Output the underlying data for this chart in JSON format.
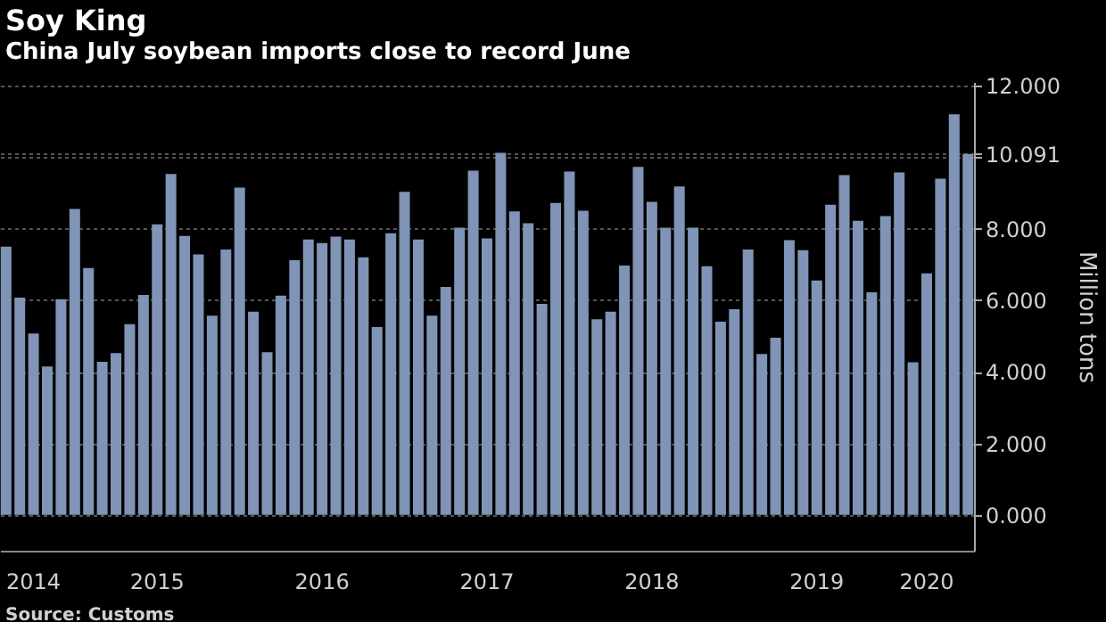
{
  "chart_data": {
    "type": "bar",
    "title": "Soy King",
    "subtitle": "China July soybean imports close to record June",
    "ylabel": "Million tons",
    "annotations": [
      "Source: Customs"
    ],
    "categories": [
      null,
      null,
      "2014",
      null,
      null,
      null,
      null,
      null,
      null,
      null,
      null,
      "2015",
      null,
      null,
      null,
      null,
      null,
      null,
      null,
      null,
      null,
      null,
      null,
      "2016",
      null,
      null,
      null,
      null,
      null,
      null,
      null,
      null,
      null,
      null,
      null,
      "2017",
      null,
      null,
      null,
      null,
      null,
      null,
      null,
      null,
      null,
      null,
      null,
      "2018",
      null,
      null,
      null,
      null,
      null,
      null,
      null,
      null,
      null,
      null,
      null,
      "2019",
      null,
      null,
      null,
      null,
      null,
      null,
      null,
      "2020",
      null,
      null,
      null
    ],
    "values": [
      7.5,
      6.07,
      5.07,
      4.15,
      6.03,
      8.55,
      6.9,
      4.28,
      4.52,
      5.33,
      6.15,
      8.12,
      9.53,
      7.8,
      7.28,
      5.57,
      7.42,
      9.15,
      5.68,
      4.55,
      6.13,
      7.12,
      7.7,
      7.6,
      7.78,
      7.7,
      7.2,
      5.25,
      7.87,
      9.03,
      7.7,
      5.57,
      6.37,
      8.03,
      9.62,
      7.73,
      10.12,
      8.48,
      8.15,
      5.9,
      8.72,
      9.6,
      8.5,
      5.47,
      5.68,
      6.97,
      9.73,
      8.75,
      8.03,
      9.18,
      8.03,
      6.95,
      5.4,
      5.75,
      7.42,
      4.5,
      4.95,
      7.68,
      7.4,
      6.55,
      8.67,
      9.5,
      8.22,
      6.22,
      8.35,
      9.57,
      4.27,
      6.75,
      9.4,
      11.2,
      10.091
    ],
    "color": "#7f94b6",
    "ylim": [
      -1,
      12.1
    ],
    "yticks": [
      {
        "value": 0,
        "label": "0.000"
      },
      {
        "value": 2,
        "label": "2.000"
      },
      {
        "value": 4,
        "label": "4.000"
      },
      {
        "value": 6,
        "label": "6.000"
      },
      {
        "value": 8,
        "label": "8.000"
      },
      {
        "value": 10,
        "label": null
      },
      {
        "value": 10.091,
        "label": "10.091"
      },
      {
        "value": 12,
        "label": "12.000"
      }
    ],
    "grid": "y"
  }
}
